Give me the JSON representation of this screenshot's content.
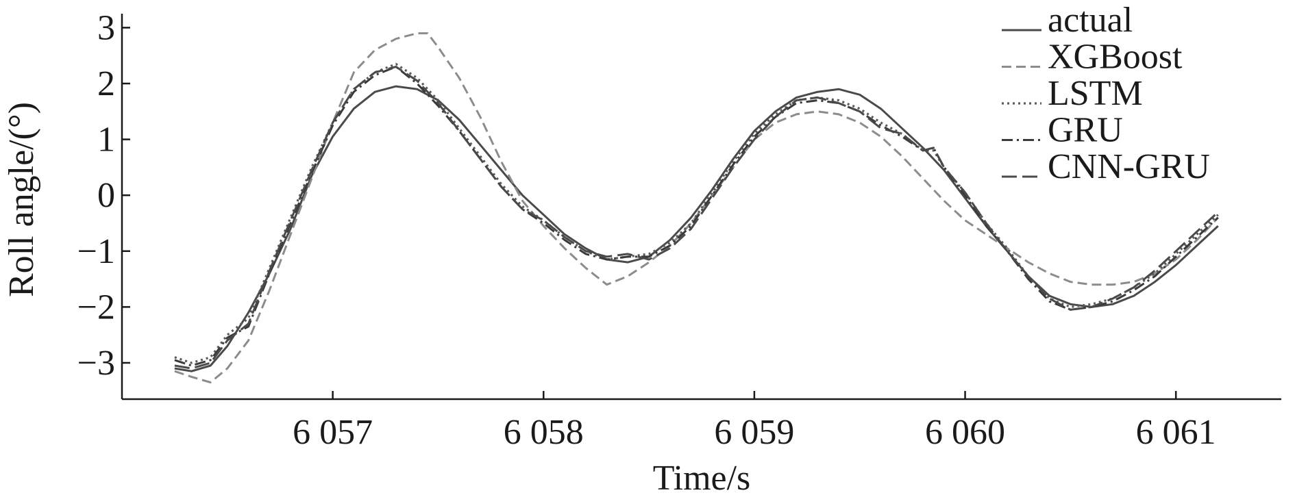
{
  "chart_data": {
    "type": "line",
    "xlabel": "Time/s",
    "ylabel": "Roll angle/(°)",
    "xlim": [
      6056.0,
      6061.5
    ],
    "ylim": [
      -3.65,
      3.25
    ],
    "x_ticks": [
      {
        "value": 6057,
        "label": "6 057"
      },
      {
        "value": 6058,
        "label": "6 058"
      },
      {
        "value": 6059,
        "label": "6 059"
      },
      {
        "value": 6060,
        "label": "6 060"
      },
      {
        "value": 6061,
        "label": "6 061"
      }
    ],
    "y_ticks": [
      {
        "value": 3,
        "label": "3"
      },
      {
        "value": 2,
        "label": "2"
      },
      {
        "value": 1,
        "label": "1"
      },
      {
        "value": 0,
        "label": "0"
      },
      {
        "value": -1,
        "label": "−1"
      },
      {
        "value": -2,
        "label": "−2"
      },
      {
        "value": -3,
        "label": "−3"
      }
    ],
    "grid": false,
    "legend_position": "top-right",
    "series": [
      {
        "name": "actual",
        "style": "solid",
        "color": "#4a4a4a",
        "x": [
          6056.25,
          6056.33,
          6056.42,
          6056.5,
          6056.6,
          6056.7,
          6056.8,
          6056.9,
          6057.0,
          6057.1,
          6057.2,
          6057.3,
          6057.4,
          6057.5,
          6057.6,
          6057.7,
          6057.8,
          6057.9,
          6058.0,
          6058.1,
          6058.2,
          6058.3,
          6058.4,
          6058.5,
          6058.6,
          6058.7,
          6058.8,
          6058.9,
          6059.0,
          6059.1,
          6059.2,
          6059.3,
          6059.4,
          6059.5,
          6059.6,
          6059.7,
          6059.8,
          6059.9,
          6060.0,
          6060.1,
          6060.2,
          6060.3,
          6060.4,
          6060.5,
          6060.6,
          6060.7,
          6060.8,
          6060.9,
          6061.0,
          6061.1,
          6061.2
        ],
        "y": [
          -3.1,
          -3.15,
          -3.05,
          -2.7,
          -2.1,
          -1.4,
          -0.6,
          0.35,
          1.05,
          1.55,
          1.85,
          1.95,
          1.9,
          1.7,
          1.35,
          0.9,
          0.45,
          0.0,
          -0.35,
          -0.7,
          -0.95,
          -1.15,
          -1.2,
          -1.1,
          -0.8,
          -0.4,
          0.1,
          0.65,
          1.15,
          1.5,
          1.75,
          1.85,
          1.9,
          1.8,
          1.55,
          1.2,
          0.85,
          0.45,
          -0.05,
          -0.55,
          -1.0,
          -1.45,
          -1.8,
          -1.95,
          -2.0,
          -1.95,
          -1.8,
          -1.55,
          -1.25,
          -0.9,
          -0.55
        ]
      },
      {
        "name": "XGBoost",
        "style": "dashed",
        "color": "#8c8c8c",
        "x": [
          6056.25,
          6056.33,
          6056.42,
          6056.5,
          6056.6,
          6056.7,
          6056.8,
          6056.9,
          6057.0,
          6057.1,
          6057.2,
          6057.3,
          6057.4,
          6057.45,
          6057.5,
          6057.6,
          6057.7,
          6057.8,
          6057.9,
          6058.0,
          6058.1,
          6058.2,
          6058.3,
          6058.4,
          6058.5,
          6058.6,
          6058.7,
          6058.8,
          6058.9,
          6059.0,
          6059.1,
          6059.2,
          6059.3,
          6059.4,
          6059.5,
          6059.6,
          6059.7,
          6059.8,
          6059.9,
          6060.0,
          6060.1,
          6060.2,
          6060.3,
          6060.4,
          6060.5,
          6060.6,
          6060.7,
          6060.8,
          6060.9,
          6061.0,
          6061.1,
          6061.2
        ],
        "y": [
          -3.15,
          -3.25,
          -3.35,
          -3.1,
          -2.6,
          -1.7,
          -0.7,
          0.3,
          1.3,
          2.2,
          2.6,
          2.8,
          2.9,
          2.9,
          2.65,
          2.1,
          1.4,
          0.6,
          -0.1,
          -0.55,
          -0.95,
          -1.3,
          -1.6,
          -1.45,
          -1.2,
          -0.9,
          -0.5,
          0.0,
          0.5,
          1.0,
          1.3,
          1.45,
          1.5,
          1.45,
          1.3,
          1.05,
          0.7,
          0.3,
          -0.1,
          -0.45,
          -0.7,
          -0.95,
          -1.2,
          -1.4,
          -1.55,
          -1.6,
          -1.6,
          -1.55,
          -1.4,
          -1.15,
          -0.8,
          -0.4
        ]
      },
      {
        "name": "LSTM",
        "style": "dotted",
        "color": "#5a5a5a",
        "x": [
          6056.25,
          6056.33,
          6056.42,
          6056.5,
          6056.6,
          6056.7,
          6056.8,
          6056.9,
          6057.0,
          6057.1,
          6057.2,
          6057.3,
          6057.4,
          6057.5,
          6057.6,
          6057.7,
          6057.8,
          6057.9,
          6058.0,
          6058.1,
          6058.2,
          6058.3,
          6058.4,
          6058.5,
          6058.6,
          6058.7,
          6058.8,
          6058.9,
          6059.0,
          6059.1,
          6059.2,
          6059.3,
          6059.4,
          6059.5,
          6059.6,
          6059.7,
          6059.8,
          6059.85,
          6059.9,
          6060.0,
          6060.1,
          6060.2,
          6060.3,
          6060.4,
          6060.5,
          6060.6,
          6060.7,
          6060.8,
          6060.9,
          6061.0,
          6061.1,
          6061.2
        ],
        "y": [
          -2.9,
          -3.0,
          -2.9,
          -2.5,
          -2.2,
          -1.3,
          -0.4,
          0.5,
          1.3,
          1.9,
          2.2,
          2.35,
          2.1,
          1.7,
          1.2,
          0.7,
          0.2,
          -0.2,
          -0.45,
          -0.75,
          -1.0,
          -1.15,
          -1.1,
          -1.05,
          -0.85,
          -0.5,
          0.05,
          0.6,
          1.1,
          1.45,
          1.7,
          1.75,
          1.7,
          1.55,
          1.3,
          1.1,
          0.8,
          0.8,
          0.5,
          0.05,
          -0.5,
          -0.95,
          -1.45,
          -1.85,
          -2.0,
          -1.95,
          -1.85,
          -1.65,
          -1.4,
          -1.05,
          -0.7,
          -0.35
        ]
      },
      {
        "name": "GRU",
        "style": "dashdot",
        "color": "#3a3a3a",
        "x": [
          6056.25,
          6056.33,
          6056.42,
          6056.5,
          6056.6,
          6056.7,
          6056.8,
          6056.9,
          6057.0,
          6057.1,
          6057.2,
          6057.3,
          6057.4,
          6057.5,
          6057.6,
          6057.7,
          6057.8,
          6057.9,
          6058.0,
          6058.1,
          6058.2,
          6058.3,
          6058.4,
          6058.5,
          6058.6,
          6058.7,
          6058.8,
          6058.9,
          6059.0,
          6059.1,
          6059.2,
          6059.3,
          6059.4,
          6059.5,
          6059.6,
          6059.7,
          6059.8,
          6059.85,
          6059.9,
          6060.0,
          6060.1,
          6060.2,
          6060.3,
          6060.4,
          6060.5,
          6060.6,
          6060.7,
          6060.8,
          6060.9,
          6061.0,
          6061.1,
          6061.2
        ],
        "y": [
          -2.95,
          -3.05,
          -2.95,
          -2.55,
          -2.35,
          -1.4,
          -0.5,
          0.4,
          1.25,
          1.85,
          2.15,
          2.3,
          2.0,
          1.6,
          1.15,
          0.65,
          0.15,
          -0.25,
          -0.5,
          -0.8,
          -1.05,
          -1.15,
          -1.1,
          -1.1,
          -0.9,
          -0.55,
          0.0,
          0.55,
          1.05,
          1.4,
          1.65,
          1.7,
          1.65,
          1.5,
          1.25,
          1.05,
          0.8,
          0.85,
          0.5,
          0.0,
          -0.55,
          -1.0,
          -1.5,
          -1.9,
          -2.05,
          -2.0,
          -1.9,
          -1.7,
          -1.45,
          -1.1,
          -0.75,
          -0.4
        ]
      },
      {
        "name": "CNN-GRU",
        "style": "longdash",
        "color": "#4a4a4a",
        "x": [
          6056.25,
          6056.33,
          6056.42,
          6056.5,
          6056.6,
          6056.7,
          6056.8,
          6056.9,
          6057.0,
          6057.1,
          6057.2,
          6057.3,
          6057.4,
          6057.5,
          6057.6,
          6057.7,
          6057.8,
          6057.9,
          6058.0,
          6058.1,
          6058.2,
          6058.3,
          6058.4,
          6058.5,
          6058.6,
          6058.7,
          6058.8,
          6058.9,
          6059.0,
          6059.1,
          6059.2,
          6059.3,
          6059.4,
          6059.5,
          6059.6,
          6059.7,
          6059.8,
          6059.85,
          6059.9,
          6060.0,
          6060.1,
          6060.2,
          6060.3,
          6060.4,
          6060.5,
          6060.6,
          6060.7,
          6060.8,
          6060.9,
          6061.0,
          6061.1,
          6061.2
        ],
        "y": [
          -3.05,
          -3.1,
          -3.0,
          -2.6,
          -2.3,
          -1.35,
          -0.45,
          0.45,
          1.3,
          1.9,
          2.2,
          2.3,
          2.05,
          1.65,
          1.15,
          0.65,
          0.15,
          -0.25,
          -0.45,
          -0.75,
          -1.0,
          -1.1,
          -1.05,
          -1.15,
          -0.95,
          -0.6,
          -0.05,
          0.5,
          1.0,
          1.4,
          1.7,
          1.75,
          1.65,
          1.5,
          1.2,
          1.1,
          0.8,
          0.85,
          0.5,
          0.05,
          -0.5,
          -1.0,
          -1.45,
          -1.85,
          -2.05,
          -2.0,
          -1.85,
          -1.65,
          -1.35,
          -1.0,
          -0.65,
          -0.3
        ]
      }
    ]
  }
}
